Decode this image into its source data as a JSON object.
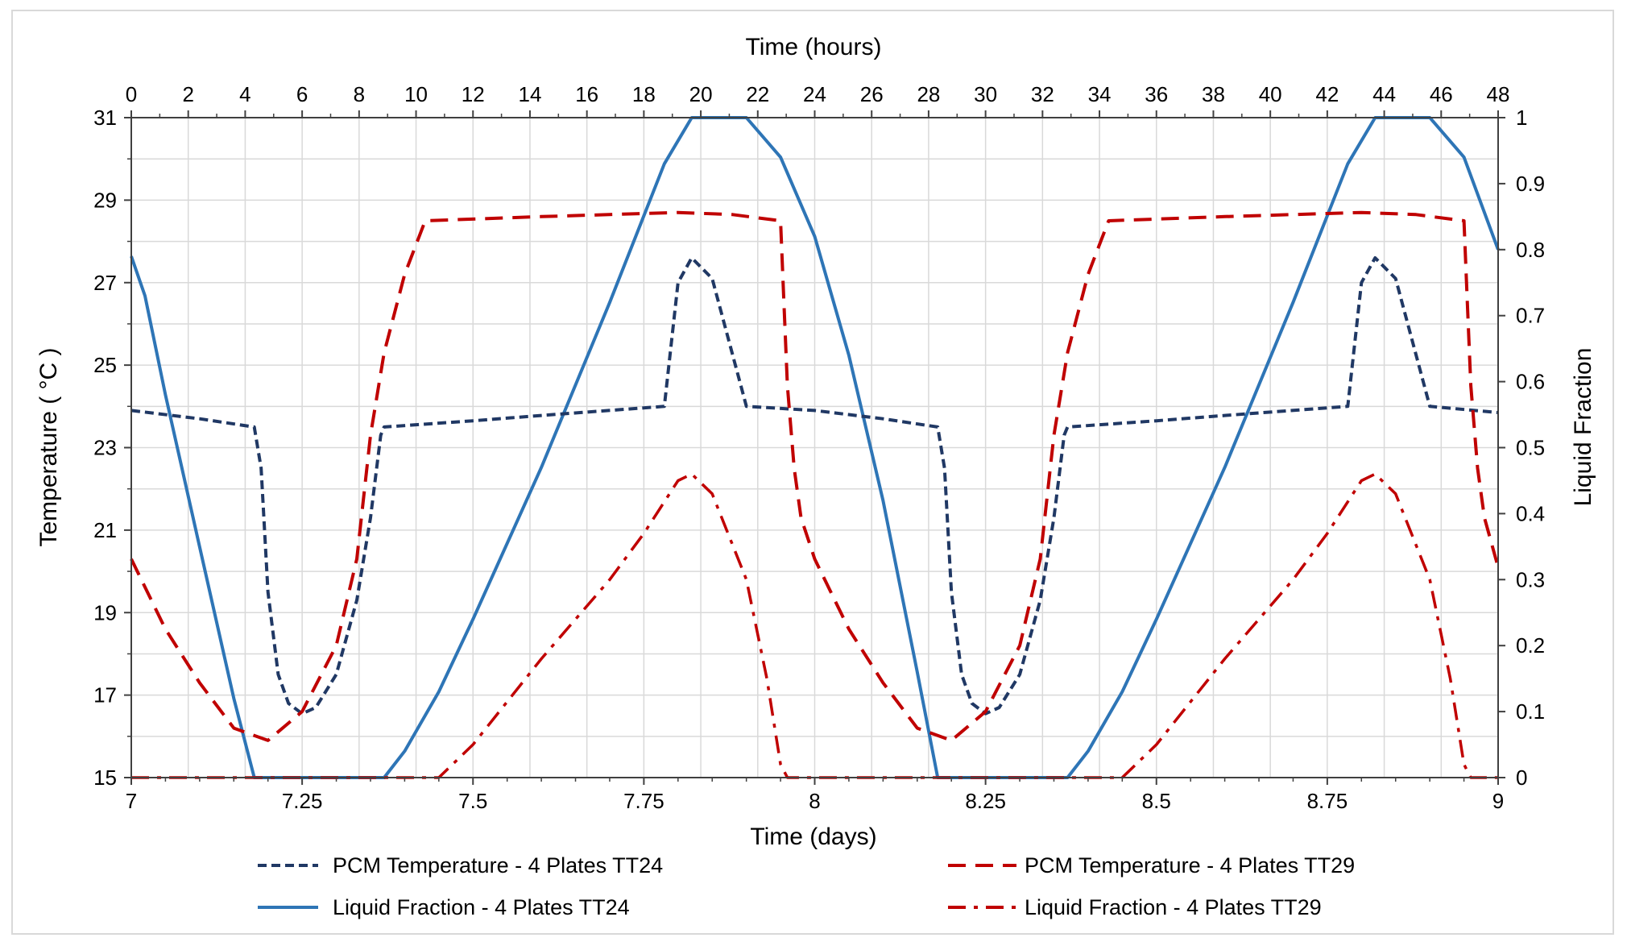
{
  "chart_data": {
    "type": "line",
    "title": "",
    "xlabel_bottom": "Time (days)",
    "xlabel_top": "Time (hours)",
    "ylabel_left": "Temperature ( °C )",
    "ylabel_right": "Liquid Fraction",
    "xlim_days": [
      7,
      9
    ],
    "xlim_hours": [
      0,
      48
    ],
    "ylim_left": [
      15,
      31
    ],
    "ylim_right": [
      0,
      1
    ],
    "bottom_ticks": [
      "7",
      "7.25",
      "7.5",
      "7.75",
      "8",
      "8.25",
      "8.5",
      "8.75",
      "9"
    ],
    "top_ticks": [
      "0",
      "2",
      "4",
      "6",
      "8",
      "10",
      "12",
      "14",
      "16",
      "18",
      "20",
      "22",
      "24",
      "26",
      "28",
      "30",
      "32",
      "34",
      "36",
      "38",
      "40",
      "42",
      "44",
      "46",
      "48"
    ],
    "left_ticks": [
      "15",
      "17",
      "19",
      "21",
      "23",
      "25",
      "27",
      "29",
      "31"
    ],
    "right_ticks": [
      "0",
      "0.1",
      "0.2",
      "0.3",
      "0.4",
      "0.5",
      "0.6",
      "0.7",
      "0.8",
      "0.9",
      "1"
    ],
    "grid": true,
    "legend_position": "bottom",
    "colors": {
      "tt24_temp": "#203864",
      "tt24_lf": "#2e75b6",
      "tt29_temp": "#c00000",
      "tt29_lf": "#c00000",
      "grid": "#d9d9d9"
    },
    "series": [
      {
        "name": "PCM Temperature - 4 Plates TT24",
        "axis": "left",
        "style": "short-dash",
        "color_key": "tt24_temp",
        "points": [
          [
            7,
            23.9
          ],
          [
            7.1,
            23.7
          ],
          [
            7.18,
            23.5
          ],
          [
            7.19,
            22.5
          ],
          [
            7.2,
            19.5
          ],
          [
            7.215,
            17.5
          ],
          [
            7.23,
            16.8
          ],
          [
            7.25,
            16.55
          ],
          [
            7.27,
            16.7
          ],
          [
            7.3,
            17.5
          ],
          [
            7.33,
            19.3
          ],
          [
            7.35,
            21.3
          ],
          [
            7.365,
            23.3
          ],
          [
            7.37,
            23.5
          ],
          [
            7.5,
            23.65
          ],
          [
            7.6,
            23.78
          ],
          [
            7.78,
            24.0
          ],
          [
            7.79,
            25.5
          ],
          [
            7.8,
            27.0
          ],
          [
            7.82,
            27.6
          ],
          [
            7.85,
            27.1
          ],
          [
            7.9,
            24.0
          ],
          [
            8.0,
            23.9
          ],
          [
            8.1,
            23.7
          ],
          [
            8.18,
            23.5
          ],
          [
            8.19,
            22.5
          ],
          [
            8.2,
            19.5
          ],
          [
            8.215,
            17.5
          ],
          [
            8.23,
            16.8
          ],
          [
            8.25,
            16.55
          ],
          [
            8.27,
            16.7
          ],
          [
            8.3,
            17.5
          ],
          [
            8.33,
            19.3
          ],
          [
            8.35,
            21.3
          ],
          [
            8.365,
            23.3
          ],
          [
            8.37,
            23.5
          ],
          [
            8.5,
            23.65
          ],
          [
            8.6,
            23.78
          ],
          [
            8.78,
            24.0
          ],
          [
            8.79,
            25.5
          ],
          [
            8.8,
            27.0
          ],
          [
            8.82,
            27.6
          ],
          [
            8.85,
            27.1
          ],
          [
            8.9,
            24.0
          ],
          [
            9.0,
            23.85
          ]
        ]
      },
      {
        "name": "PCM Temperature - 4 Plates TT29",
        "axis": "left",
        "style": "long-dash",
        "color_key": "tt29_temp",
        "points": [
          [
            7,
            20.3
          ],
          [
            7.05,
            18.6
          ],
          [
            7.1,
            17.3
          ],
          [
            7.15,
            16.2
          ],
          [
            7.2,
            15.9
          ],
          [
            7.25,
            16.6
          ],
          [
            7.3,
            18.2
          ],
          [
            7.33,
            20.3
          ],
          [
            7.35,
            23.3
          ],
          [
            7.37,
            25.3
          ],
          [
            7.4,
            27.2
          ],
          [
            7.43,
            28.5
          ],
          [
            7.6,
            28.6
          ],
          [
            7.8,
            28.7
          ],
          [
            7.88,
            28.65
          ],
          [
            7.95,
            28.5
          ],
          [
            7.955,
            26.5
          ],
          [
            7.96,
            24.5
          ],
          [
            7.97,
            22.5
          ],
          [
            7.98,
            21.3
          ],
          [
            8,
            20.3
          ],
          [
            8.05,
            18.6
          ],
          [
            8.1,
            17.3
          ],
          [
            8.15,
            16.2
          ],
          [
            8.2,
            15.9
          ],
          [
            8.25,
            16.6
          ],
          [
            8.3,
            18.2
          ],
          [
            8.33,
            20.3
          ],
          [
            8.35,
            23.3
          ],
          [
            8.37,
            25.3
          ],
          [
            8.4,
            27.2
          ],
          [
            8.43,
            28.5
          ],
          [
            8.6,
            28.6
          ],
          [
            8.8,
            28.7
          ],
          [
            8.88,
            28.65
          ],
          [
            8.95,
            28.5
          ],
          [
            8.955,
            26.5
          ],
          [
            8.96,
            24.5
          ],
          [
            8.97,
            22.5
          ],
          [
            8.98,
            21.3
          ],
          [
            9,
            20.1
          ]
        ]
      },
      {
        "name": "Liquid Fraction - 4 Plates TT24",
        "axis": "right",
        "style": "solid",
        "color_key": "tt24_lf",
        "points": [
          [
            7,
            0.79
          ],
          [
            7.02,
            0.73
          ],
          [
            7.05,
            0.58
          ],
          [
            7.1,
            0.35
          ],
          [
            7.15,
            0.12
          ],
          [
            7.18,
            0.0
          ],
          [
            7.37,
            0.0
          ],
          [
            7.4,
            0.04
          ],
          [
            7.45,
            0.13
          ],
          [
            7.5,
            0.24
          ],
          [
            7.6,
            0.47
          ],
          [
            7.7,
            0.72
          ],
          [
            7.78,
            0.93
          ],
          [
            7.82,
            1.0
          ],
          [
            7.9,
            1.0
          ],
          [
            7.95,
            0.94
          ],
          [
            8,
            0.82
          ],
          [
            8.05,
            0.64
          ],
          [
            8.1,
            0.42
          ],
          [
            8.15,
            0.16
          ],
          [
            8.18,
            0.0
          ],
          [
            8.37,
            0.0
          ],
          [
            8.4,
            0.04
          ],
          [
            8.45,
            0.13
          ],
          [
            8.5,
            0.24
          ],
          [
            8.6,
            0.47
          ],
          [
            8.7,
            0.72
          ],
          [
            8.78,
            0.93
          ],
          [
            8.82,
            1.0
          ],
          [
            8.9,
            1.0
          ],
          [
            8.95,
            0.94
          ],
          [
            9,
            0.8
          ]
        ]
      },
      {
        "name": "Liquid Fraction - 4 Plates TT29",
        "axis": "right",
        "style": "dash-dot",
        "color_key": "tt29_lf",
        "points": [
          [
            7,
            0.0
          ],
          [
            7.45,
            0.0
          ],
          [
            7.5,
            0.05
          ],
          [
            7.6,
            0.18
          ],
          [
            7.7,
            0.3
          ],
          [
            7.75,
            0.37
          ],
          [
            7.8,
            0.45
          ],
          [
            7.82,
            0.46
          ],
          [
            7.85,
            0.43
          ],
          [
            7.9,
            0.3
          ],
          [
            7.93,
            0.15
          ],
          [
            7.95,
            0.02
          ],
          [
            7.96,
            0.0
          ],
          [
            8.45,
            0.0
          ],
          [
            8.5,
            0.05
          ],
          [
            8.6,
            0.18
          ],
          [
            8.7,
            0.3
          ],
          [
            8.75,
            0.37
          ],
          [
            8.8,
            0.45
          ],
          [
            8.82,
            0.46
          ],
          [
            8.85,
            0.43
          ],
          [
            8.9,
            0.3
          ],
          [
            8.93,
            0.15
          ],
          [
            8.95,
            0.02
          ],
          [
            8.96,
            0.0
          ],
          [
            9,
            0.0
          ]
        ]
      }
    ]
  }
}
